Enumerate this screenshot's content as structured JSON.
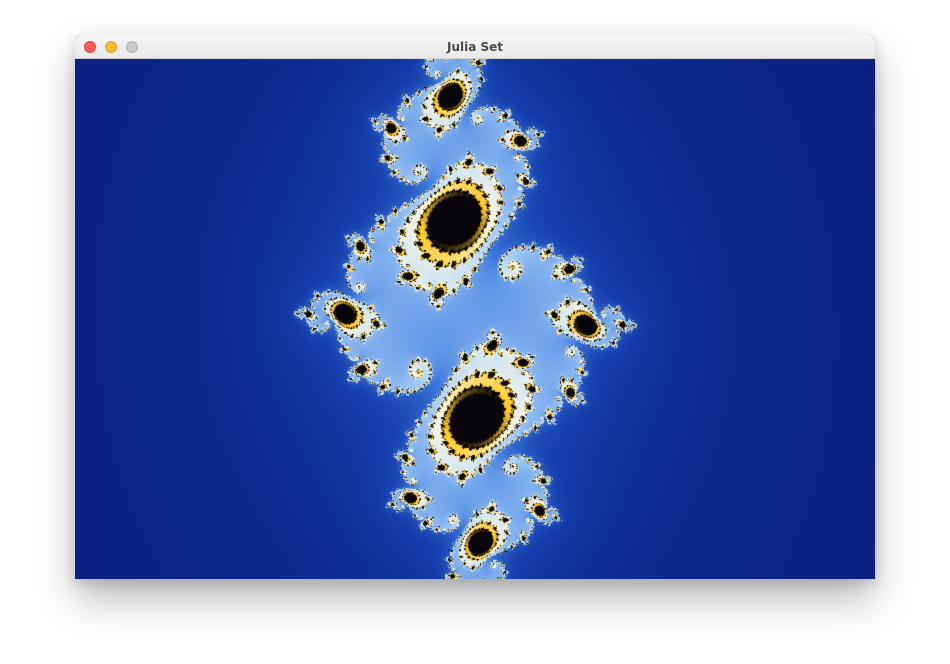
{
  "window": {
    "title": "Julia Set"
  },
  "colors": {
    "background": "#03035e",
    "close_button": "#fc5c56",
    "minimize_button": "#fdbc2e",
    "zoom_button": "#c9c9c9"
  },
  "icons": [
    "close-button-icon",
    "minimize-button-icon",
    "zoom-button-icon"
  ]
}
